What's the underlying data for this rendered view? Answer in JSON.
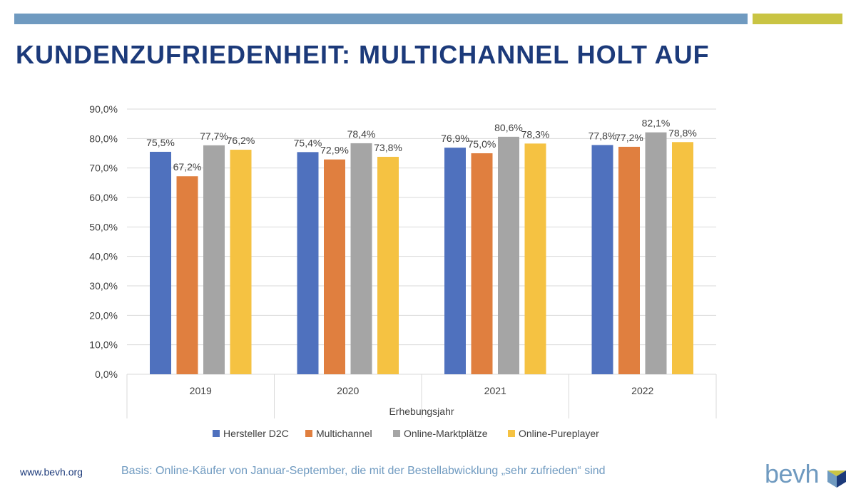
{
  "header": {
    "title": "KUNDENZUFRIEDENHEIT: MULTICHANNEL HOLT AUF"
  },
  "footer": {
    "url": "www.bevh.org",
    "note": "Basis: Online-Käufer von Januar-September, die mit der Bestellabwicklung „sehr zufrieden“ sind",
    "logo": "bevh"
  },
  "chart_data": {
    "type": "bar",
    "categories": [
      "2019",
      "2020",
      "2021",
      "2022"
    ],
    "series": [
      {
        "name": "Hersteller D2C",
        "color": "#4f71be",
        "values": [
          75.5,
          75.4,
          76.9,
          77.8
        ],
        "labels": [
          "75,5%",
          "75,4%",
          "76,9%",
          "77,8%"
        ]
      },
      {
        "name": "Multichannel",
        "color": "#e07f3f",
        "values": [
          67.2,
          72.9,
          75.0,
          77.2
        ],
        "labels": [
          "67,2%",
          "72,9%",
          "75,0%",
          "77,2%"
        ]
      },
      {
        "name": "Online-Marktplätze",
        "color": "#a5a5a5",
        "values": [
          77.7,
          78.4,
          80.6,
          82.1
        ],
        "labels": [
          "77,7%",
          "78,4%",
          "80,6%",
          "82,1%"
        ]
      },
      {
        "name": "Online-Pureplayer",
        "color": "#f5c242",
        "values": [
          76.2,
          73.8,
          78.3,
          78.8
        ],
        "labels": [
          "76,2%",
          "73,8%",
          "78,3%",
          "78,8%"
        ]
      }
    ],
    "xlabel": "Erhebungsjahr",
    "ylabel": "",
    "ylim": [
      0,
      90
    ],
    "yticks": [
      "0,0%",
      "10,0%",
      "20,0%",
      "30,0%",
      "40,0%",
      "50,0%",
      "60,0%",
      "70,0%",
      "80,0%",
      "90,0%"
    ],
    "grid": true,
    "legend": "bottom"
  }
}
